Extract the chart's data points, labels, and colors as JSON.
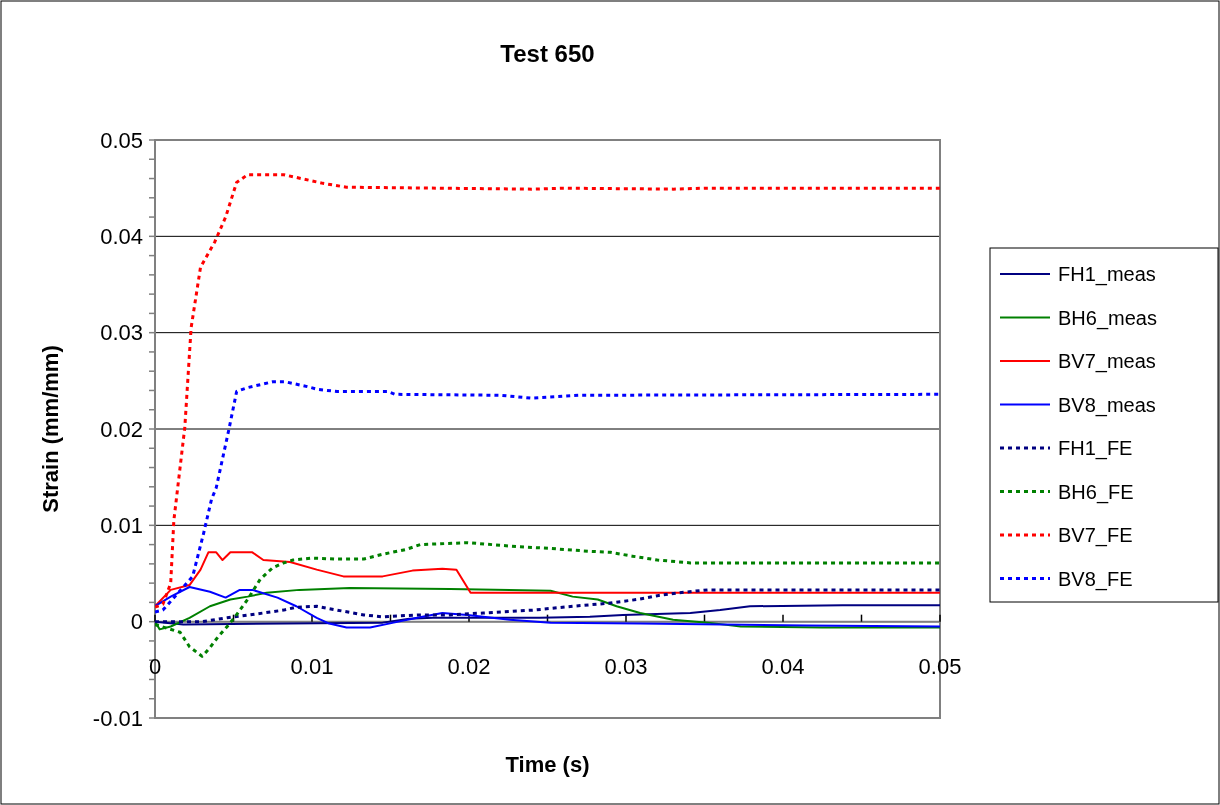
{
  "chart_data": {
    "type": "line",
    "title": "Test 650",
    "xlabel": "Time (s)",
    "ylabel": "Strain (mm/mm)",
    "xlim": [
      0,
      0.05
    ],
    "xticks": [
      0,
      {
        "value": 0.005,
        "label": null
      },
      0.01,
      {
        "value": 0.015,
        "label": null
      },
      0.02,
      {
        "value": 0.025,
        "label": null
      },
      0.03,
      {
        "value": 0.035,
        "label": null
      },
      0.04,
      {
        "value": 0.045,
        "label": null
      },
      0.05
    ],
    "ylim": [
      -0.01,
      0.05
    ],
    "yticks": [
      -0.01,
      {
        "value": -0.008,
        "label": null
      },
      {
        "value": -0.006,
        "label": null
      },
      {
        "value": -0.004,
        "label": null
      },
      {
        "value": -0.002,
        "label": null
      },
      0,
      {
        "value": 0.002,
        "label": null
      },
      {
        "value": 0.004,
        "label": null
      },
      {
        "value": 0.006,
        "label": null
      },
      {
        "value": 0.008,
        "label": null
      },
      0.01,
      {
        "value": 0.012,
        "label": null
      },
      {
        "value": 0.014,
        "label": null
      },
      {
        "value": 0.016,
        "label": null
      },
      {
        "value": 0.018,
        "label": null
      },
      0.02,
      {
        "value": 0.022,
        "label": null
      },
      {
        "value": 0.024,
        "label": null
      },
      {
        "value": 0.026,
        "label": null
      },
      {
        "value": 0.028,
        "label": null
      },
      0.03,
      {
        "value": 0.032,
        "label": null
      },
      {
        "value": 0.034,
        "label": null
      },
      {
        "value": 0.036,
        "label": null
      },
      {
        "value": 0.038,
        "label": null
      },
      0.04,
      {
        "value": 0.042,
        "label": null
      },
      {
        "value": 0.044,
        "label": null
      },
      {
        "value": 0.046,
        "label": null
      },
      {
        "value": 0.048,
        "label": null
      },
      0.05
    ],
    "grid": "y",
    "legend": "right",
    "marker": "none",
    "series": [
      {
        "name": "FH1_meas",
        "color": "#000080",
        "line_style": "solid",
        "x": [
          0,
          0.0018,
          0.0145,
          0.0162,
          0.0177,
          0.022,
          0.0245,
          0.0277,
          0.0298,
          0.0341,
          0.036,
          0.0379,
          0.0438,
          0.05
        ],
        "values": [
          0,
          -0.0003,
          -0.0001,
          0.0003,
          0.0004,
          0.0004,
          0.0004,
          0.0005,
          0.0007,
          0.0009,
          0.0012,
          0.0016,
          0.0017,
          0.0017
        ]
      },
      {
        "name": "BH6_meas",
        "color": "#008000",
        "line_style": "solid",
        "x": [
          0,
          0.0003,
          0.001,
          0.0022,
          0.0035,
          0.0048,
          0.0059,
          0.0071,
          0.0092,
          0.0124,
          0.0188,
          0.0252,
          0.0266,
          0.0282,
          0.0294,
          0.0309,
          0.033,
          0.0352,
          0.0373,
          0.0425,
          0.05
        ],
        "values": [
          0,
          -0.0008,
          -0.0005,
          0.0004,
          0.0016,
          0.0023,
          0.0026,
          0.003,
          0.0033,
          0.0035,
          0.0034,
          0.0032,
          0.0026,
          0.0023,
          0.0016,
          0.0009,
          0.0002,
          -0.0001,
          -0.0005,
          -0.0006,
          -0.0006
        ]
      },
      {
        "name": "BV7_meas",
        "color": "#ff0000",
        "line_style": "solid",
        "x": [
          0,
          0.001,
          0.0022,
          0.0029,
          0.0034,
          0.0039,
          0.0043,
          0.0048,
          0.0062,
          0.0069,
          0.0086,
          0.0103,
          0.012,
          0.0145,
          0.0164,
          0.0183,
          0.0192,
          0.0201,
          0.0209,
          0.05
        ],
        "values": [
          0.0016,
          0.0033,
          0.0038,
          0.0054,
          0.0072,
          0.0072,
          0.0064,
          0.0072,
          0.0072,
          0.0064,
          0.0062,
          0.0054,
          0.0047,
          0.0047,
          0.0053,
          0.0055,
          0.0054,
          0.003,
          0.003,
          0.003
        ]
      },
      {
        "name": "BV8_meas",
        "color": "#0000ff",
        "line_style": "solid",
        "x": [
          0,
          0.001,
          0.0022,
          0.0035,
          0.0045,
          0.0054,
          0.0062,
          0.0078,
          0.009,
          0.0103,
          0.0111,
          0.0122,
          0.0137,
          0.0152,
          0.0167,
          0.0183,
          0.0199,
          0.0209,
          0.0226,
          0.0252,
          0.0309,
          0.0415,
          0.05
        ],
        "values": [
          0.0016,
          0.0026,
          0.0036,
          0.0031,
          0.0025,
          0.0033,
          0.0033,
          0.0025,
          0.0016,
          0.0004,
          -0.0002,
          -0.0006,
          -0.0006,
          -0.0001,
          0.0004,
          0.0009,
          0.0007,
          0.0005,
          0.0002,
          -0.0001,
          -0.0002,
          -0.0004,
          -0.0005
        ]
      },
      {
        "name": "FH1_FE",
        "color": "#000080",
        "line_style": "dotted",
        "x": [
          0,
          0.003,
          0.0046,
          0.006,
          0.0069,
          0.0082,
          0.009,
          0.0103,
          0.0116,
          0.0133,
          0.0145,
          0.0167,
          0.0188,
          0.0209,
          0.0241,
          0.0266,
          0.0288,
          0.0307,
          0.032,
          0.0334,
          0.0352,
          0.05
        ],
        "values": [
          0,
          0,
          0.0004,
          0.0007,
          0.0009,
          0.0012,
          0.0015,
          0.0016,
          0.0012,
          0.0007,
          0.0005,
          0.0007,
          0.0007,
          0.0009,
          0.0012,
          0.0016,
          0.0019,
          0.0023,
          0.0027,
          0.003,
          0.0033,
          0.0033
        ]
      },
      {
        "name": "BH6_FE",
        "color": "#008000",
        "line_style": "dotted",
        "x": [
          0,
          0.0016,
          0.0022,
          0.003,
          0.0035,
          0.004,
          0.0046,
          0.0051,
          0.0059,
          0.0067,
          0.0075,
          0.0082,
          0.0088,
          0.01,
          0.0116,
          0.0133,
          0.0145,
          0.016,
          0.0169,
          0.0199,
          0.023,
          0.0252,
          0.0277,
          0.029,
          0.0304,
          0.032,
          0.0341,
          0.05
        ],
        "values": [
          -0.0003,
          -0.0011,
          -0.0026,
          -0.0036,
          -0.0027,
          -0.0016,
          -0.0005,
          0.0005,
          0.0023,
          0.0044,
          0.0056,
          0.0061,
          0.0064,
          0.0066,
          0.0065,
          0.0065,
          0.007,
          0.0075,
          0.008,
          0.0082,
          0.0078,
          0.0076,
          0.0073,
          0.0072,
          0.0068,
          0.0064,
          0.0061,
          0.0061
        ]
      },
      {
        "name": "BV7_FE",
        "color": "#ff0000",
        "line_style": "dotted",
        "x": [
          0,
          0.0005,
          0.001,
          0.0012,
          0.0019,
          0.0023,
          0.0029,
          0.0038,
          0.0045,
          0.0052,
          0.0059,
          0.0082,
          0.0107,
          0.0122,
          0.024,
          0.026,
          0.033,
          0.035,
          0.05
        ],
        "values": [
          0.0015,
          0.0018,
          0.004,
          0.0105,
          0.0202,
          0.0305,
          0.0368,
          0.0394,
          0.042,
          0.0456,
          0.0464,
          0.0464,
          0.0455,
          0.0451,
          0.0449,
          0.045,
          0.0449,
          0.045,
          0.045
        ]
      },
      {
        "name": "BV8_FE",
        "color": "#0000ff",
        "line_style": "dotted",
        "x": [
          0,
          0.0005,
          0.0024,
          0.0031,
          0.0036,
          0.0039,
          0.0047,
          0.0052,
          0.0059,
          0.0075,
          0.0083,
          0.0097,
          0.0104,
          0.0116,
          0.0148,
          0.0153,
          0.022,
          0.024,
          0.027,
          0.05
        ],
        "values": [
          0.001,
          0.0012,
          0.0047,
          0.0092,
          0.0127,
          0.0139,
          0.0199,
          0.0239,
          0.0243,
          0.0249,
          0.0249,
          0.0244,
          0.0241,
          0.0239,
          0.0239,
          0.0236,
          0.0235,
          0.0232,
          0.0235,
          0.0236
        ]
      }
    ]
  }
}
